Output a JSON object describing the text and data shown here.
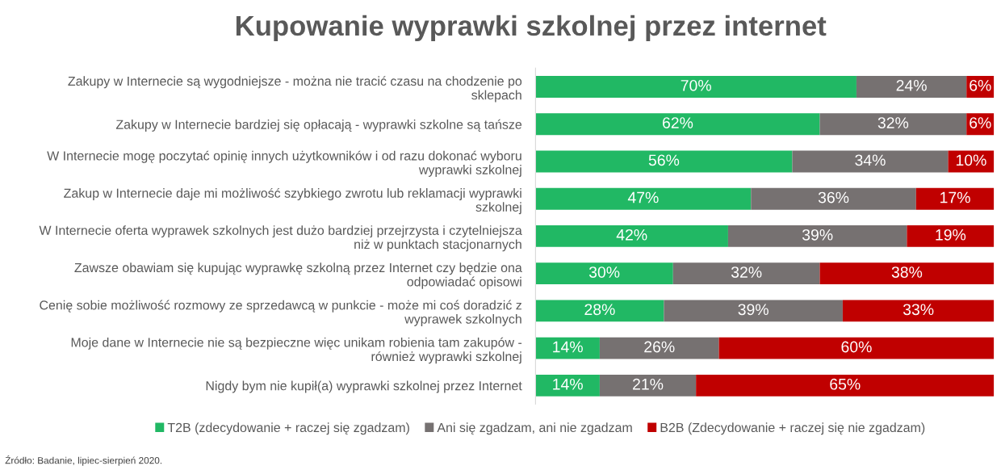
{
  "chart_data": {
    "type": "bar",
    "orientation": "horizontal",
    "stacked": true,
    "legend": "bottom",
    "grid": false,
    "tick_labels": "y",
    "title": "Kupowanie wyprawki szkolnej przez internet",
    "categories": [
      "Zakupy w Internecie są wygodniejsze - można nie tracić czasu na chodzenie po\nsklepach",
      "Zakupy w Internecie bardziej się opłacają - wyprawki szkolne są tańsze",
      "W Internecie mogę poczytać opinię innych użytkowników i od razu dokonać wyboru\nwyprawki szkolnej",
      "Zakup w Internecie daje mi możliwość szybkiego zwrotu lub reklamacji wyprawki\nszkolnej",
      "W Internecie oferta wyprawek szkolnych jest dużo bardziej przejrzysta i czytelniejsza\nniż w punktach stacjonarnych",
      "Zawsze obawiam się kupując wyprawkę szkolną przez Internet czy będzie ona\nodpowiadać opisowi",
      "Cenię sobie możliwość rozmowy ze sprzedawcą w punkcie - może mi coś doradzić z\nwyprawek szkolnych",
      "Moje dane w Internecie nie są bezpieczne więc unikam robienia tam zakupów -\nrównież wyprawki szkolnej",
      "Nigdy bym nie kupił(a) wyprawki szkolnej przez Internet"
    ],
    "series": [
      {
        "name": "T2B (zdecydowanie + raczej się zgadzam)",
        "color": "#21b864",
        "values": [
          70,
          62,
          56,
          47,
          42,
          30,
          28,
          14,
          14
        ],
        "value_labels": [
          "70%",
          "62%",
          "56%",
          "47%",
          "42%",
          "30%",
          "28%",
          "14%",
          "14%"
        ]
      },
      {
        "name": "Ani się zgadzam, ani nie zgadzam",
        "color": "#767171",
        "values": [
          24,
          32,
          34,
          36,
          39,
          32,
          39,
          26,
          21
        ],
        "value_labels": [
          "24%",
          "32%",
          "34%",
          "36%",
          "39%",
          "32%",
          "39%",
          "26%",
          "21%"
        ]
      },
      {
        "name": "B2B (Zdecydowanie + raczej się nie zgadzam)",
        "color": "#c00000",
        "values": [
          6,
          6,
          10,
          17,
          19,
          38,
          33,
          60,
          65
        ],
        "value_labels": [
          "6%",
          "6%",
          "10%",
          "17%",
          "19%",
          "38%",
          "33%",
          "60%",
          "65%"
        ]
      }
    ],
    "annotations": [
      "Źródło: Badanie, lipiec-sierpień 2020."
    ]
  }
}
